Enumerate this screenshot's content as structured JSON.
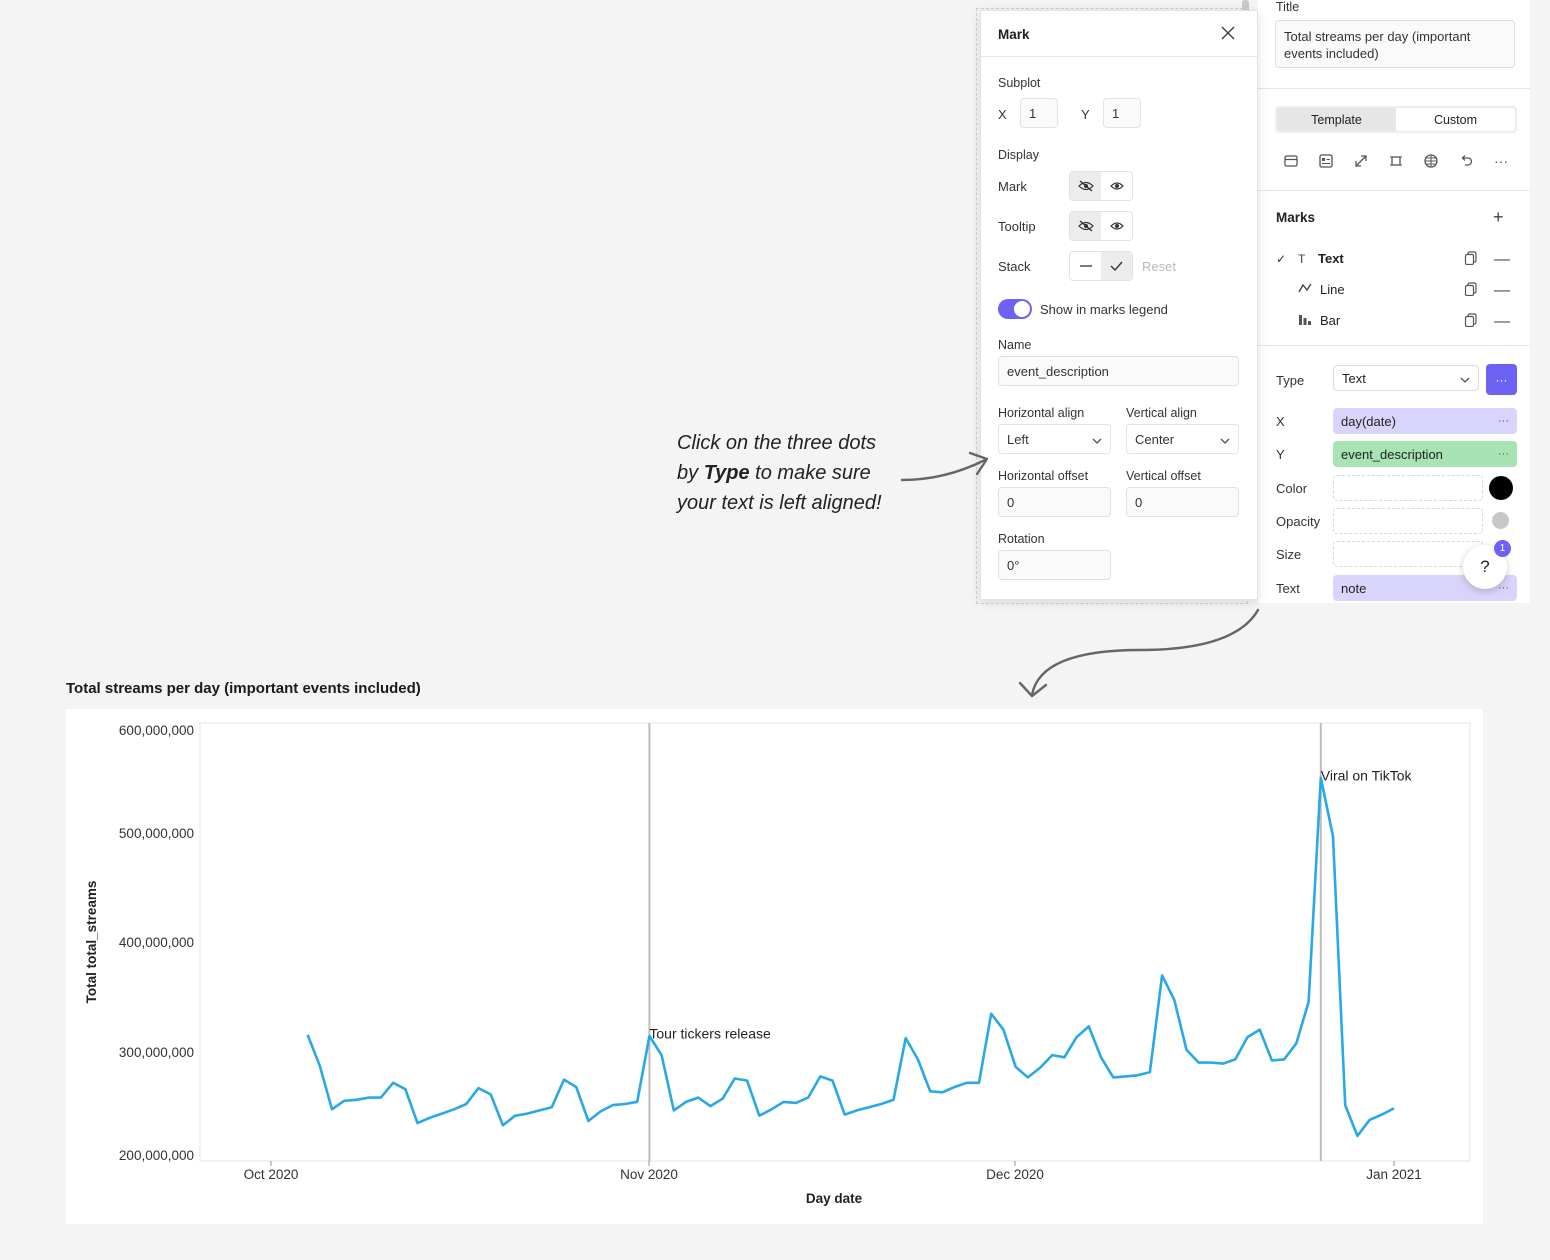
{
  "right_panel": {
    "title_label": "Title",
    "title_value": "Total streams per day (important events included)",
    "tabs": [
      {
        "label": "Template",
        "active": true
      },
      {
        "label": "Custom",
        "active": false
      }
    ],
    "toolbar_icons": [
      "card-icon",
      "layout-icon",
      "expand-icon",
      "fit-icon",
      "grid-icon",
      "undo-icon",
      "more-icon"
    ],
    "marks_header": "Marks",
    "marks": [
      {
        "label": "Text",
        "icon": "T",
        "selected": true
      },
      {
        "label": "Line",
        "icon": "∿",
        "selected": false
      },
      {
        "label": "Bar",
        "icon": "▮",
        "selected": false
      }
    ],
    "encodings": {
      "type_label": "Type",
      "type_value": "Text",
      "x_label": "X",
      "x_value": "day(date)",
      "y_label": "Y",
      "y_value": "event_description",
      "color_label": "Color",
      "opacity_label": "Opacity",
      "size_label": "Size",
      "text_label": "Text",
      "text_value": "note"
    },
    "badge_count": "1",
    "help_label": "?",
    "colors": {
      "accent": "#6e62f5",
      "x_field": "#d8d4fb",
      "y_field": "#a8e3b3",
      "text_field": "#d8d4fb"
    }
  },
  "mark_popup": {
    "title": "Mark",
    "subplot_label": "Subplot",
    "subplot_x_label": "X",
    "subplot_x": "1",
    "subplot_y_label": "Y",
    "subplot_y": "1",
    "display_label": "Display",
    "mark_label": "Mark",
    "tooltip_label": "Tooltip",
    "stack_label": "Stack",
    "reset_label": "Reset",
    "legend_toggle_label": "Show in marks legend",
    "name_label": "Name",
    "name_value": "event_description",
    "halign_label": "Horizontal align",
    "halign_value": "Left",
    "valign_label": "Vertical align",
    "valign_value": "Center",
    "hoffset_label": "Horizontal offset",
    "hoffset_value": "0",
    "voffset_label": "Vertical offset",
    "voffset_value": "0",
    "rotation_label": "Rotation",
    "rotation_value": "0°"
  },
  "annotation": {
    "line1": "Click on the three dots",
    "line2_pre": "by ",
    "line2_bold": "Type",
    "line2_post": " to make sure",
    "line3": "your text is left aligned!"
  },
  "chart_data": {
    "type": "line",
    "title": "Total streams per day (important events included)",
    "xlabel": "Day date",
    "ylabel": "Total total_streams",
    "ylim": [
      200000000,
      600000000
    ],
    "yticks": [
      "600,000,000",
      "500,000,000",
      "400,000,000",
      "300,000,000",
      "200,000,000"
    ],
    "xticks": [
      "Oct 2020",
      "Nov 2020",
      "Dec 2020",
      "Jan 2021"
    ],
    "line_color": "#28a8e8",
    "x_start": "2020-10-04",
    "x_step_days": 1,
    "values": [
      313000000,
      284000000,
      243000000,
      251000000,
      252000000,
      254000000,
      254000000,
      268000000,
      262000000,
      230000000,
      235000000,
      239000000,
      243000000,
      248000000,
      263000000,
      257000000,
      228000000,
      237000000,
      239000000,
      242000000,
      245000000,
      271000000,
      264000000,
      232000000,
      241000000,
      247000000,
      248000000,
      250000000,
      312000000,
      294000000,
      242000000,
      250000000,
      254000000,
      246000000,
      253000000,
      272000000,
      270000000,
      237000000,
      243000000,
      250000000,
      249000000,
      254000000,
      274000000,
      270000000,
      238000000,
      242000000,
      245000000,
      248000000,
      252000000,
      310000000,
      290000000,
      260000000,
      259000000,
      264000000,
      268000000,
      268000000,
      333000000,
      318000000,
      283000000,
      273000000,
      282000000,
      294000000,
      292000000,
      311000000,
      321000000,
      292000000,
      273000000,
      274000000,
      275000000,
      278000000,
      369000000,
      346000000,
      299000000,
      287000000,
      287000000,
      286000000,
      290000000,
      311000000,
      318000000,
      289000000,
      290000000,
      305000000,
      344000000,
      555000000,
      500000000,
      247000000,
      218000000,
      233000000,
      238000000,
      244000000
    ],
    "annotations": [
      {
        "date": "2020-11-01",
        "text": "Tour tickers release",
        "value": 312000000
      },
      {
        "date": "2020-12-26",
        "text": "Viral on TikTok",
        "value": 555000000
      }
    ]
  }
}
